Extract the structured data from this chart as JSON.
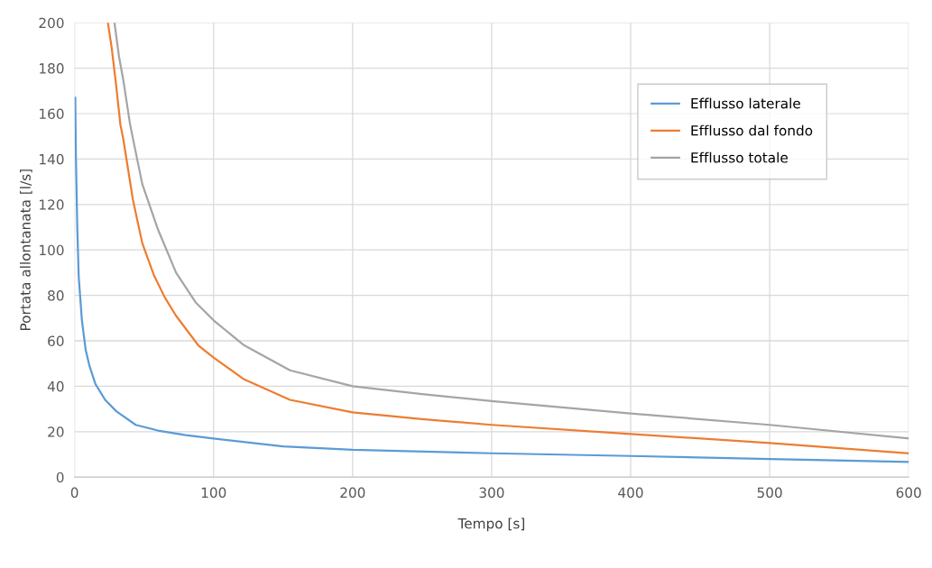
{
  "chart_data": {
    "type": "line",
    "xlabel": "Tempo [s]",
    "ylabel": "Portata allontanata [l/s]",
    "xlim": [
      0,
      600
    ],
    "ylim": [
      0,
      200
    ],
    "xticks": [
      0,
      100,
      200,
      300,
      400,
      500,
      600
    ],
    "yticks": [
      0,
      20,
      40,
      60,
      80,
      100,
      120,
      140,
      160,
      180,
      200
    ],
    "grid": true,
    "legend": "top right",
    "marker": "none",
    "line_style": "solid",
    "series": [
      {
        "name": "Efflusso laterale",
        "color": "#5b9bd5",
        "x": [
          0.5,
          1,
          2,
          3,
          5.3,
          8,
          10.7,
          15,
          22,
          30,
          44,
          60,
          80,
          100,
          150,
          200,
          300,
          400,
          500,
          600
        ],
        "values": [
          167,
          140,
          109,
          88,
          69,
          56,
          49,
          41,
          34,
          29,
          23,
          20.5,
          18.5,
          17,
          13.5,
          12,
          10.5,
          9.3,
          8,
          6.7
        ]
      },
      {
        "name": "Efflusso dal fondo",
        "color": "#ed7d31",
        "x": [
          24,
          26.7,
          30,
          33,
          35,
          42,
          48.7,
          57,
          65,
          73,
          89,
          100,
          122,
          155,
          200,
          250,
          300,
          400,
          500,
          600
        ],
        "values": [
          200,
          189,
          172,
          155,
          149,
          122,
          103,
          89,
          79,
          71,
          58,
          52.6,
          43,
          34,
          28.5,
          25.5,
          23,
          19,
          15,
          10.5
        ]
      },
      {
        "name": "Efflusso totale",
        "color": "#a5a5a5",
        "x": [
          28.7,
          32,
          35,
          40,
          48.7,
          60,
          73,
          87,
          100,
          122,
          155,
          200,
          250,
          300,
          400,
          500,
          600
        ],
        "values": [
          200,
          185,
          175,
          155,
          129,
          109,
          90,
          77,
          69,
          58,
          47,
          40,
          36.5,
          33.5,
          28,
          23,
          17
        ]
      }
    ]
  }
}
